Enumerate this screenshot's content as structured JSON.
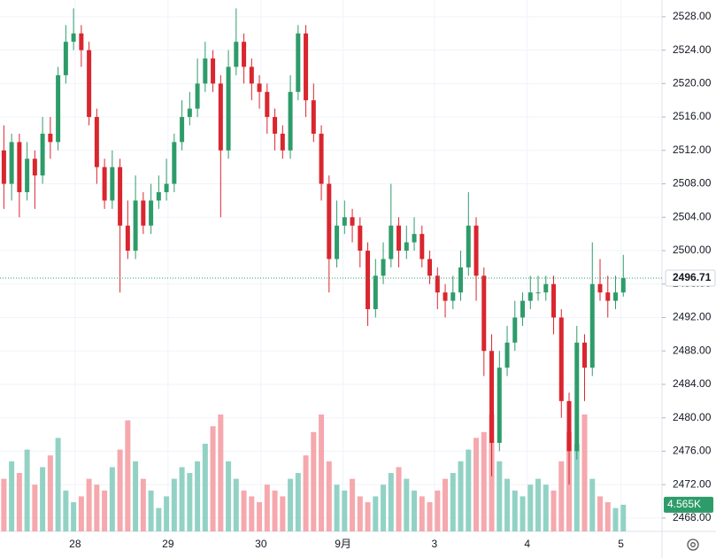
{
  "chart_data": {
    "type": "candlestick",
    "open": [
      2512,
      2508,
      2513,
      2507,
      2511,
      2509,
      2514,
      2513,
      2521,
      2525,
      2526,
      2524,
      2516,
      2510,
      2506,
      2510,
      2503,
      2500,
      2506,
      2503,
      2506,
      2507,
      2508,
      2513,
      2516,
      2517,
      2520,
      2523,
      2520,
      2512,
      2522,
      2525,
      2522,
      2520,
      2519,
      2516,
      2514,
      2512,
      2519,
      2526,
      2518,
      2514,
      2508,
      2499,
      2503,
      2504,
      2503,
      2500,
      2493,
      2497,
      2499,
      2503,
      2500,
      2501,
      2502,
      2499,
      2497,
      2495,
      2494,
      2495,
      2498,
      2503,
      2497,
      2488,
      2477,
      2486,
      2489,
      2492,
      2494,
      2495,
      2495,
      2496,
      2492,
      2482,
      2476,
      2489,
      2486,
      2496,
      2495,
      2494,
      2495
    ],
    "high": [
      2515,
      2514,
      2514,
      2513,
      2512,
      2516,
      2516,
      2522,
      2527,
      2529,
      2527,
      2525,
      2517,
      2511,
      2512,
      2511,
      2506,
      2509,
      2507,
      2508,
      2509,
      2511,
      2514,
      2518,
      2519,
      2523,
      2525,
      2524,
      2521,
      2524,
      2529,
      2526,
      2523,
      2521,
      2520,
      2517,
      2515,
      2521,
      2527,
      2527,
      2520,
      2515,
      2509,
      2506,
      2506,
      2505,
      2504,
      2501,
      2499,
      2501,
      2508,
      2504,
      2503,
      2504,
      2503,
      2500,
      2498,
      2496,
      2497,
      2500,
      2507,
      2504,
      2498,
      2490,
      2488,
      2491,
      2494,
      2495,
      2497,
      2497,
      2497,
      2497,
      2493,
      2483,
      2491,
      2490,
      2501,
      2499,
      2497,
      2497,
      2499.5
    ],
    "low": [
      2505,
      2506,
      2504,
      2506,
      2505,
      2508,
      2511,
      2512,
      2520,
      2524,
      2522,
      2515,
      2508,
      2505,
      2505,
      2495,
      2499,
      2499,
      2502,
      2502,
      2505,
      2506,
      2507,
      2512,
      2515,
      2516,
      2519,
      2519,
      2504,
      2511,
      2521,
      2520,
      2518,
      2517,
      2514,
      2512,
      2511,
      2511,
      2518,
      2516,
      2513,
      2506,
      2495,
      2498,
      2502,
      2501,
      2498,
      2491,
      2492,
      2496,
      2498,
      2498,
      2499,
      2500,
      2498,
      2496,
      2493,
      2492,
      2493,
      2494,
      2497,
      2494,
      2485,
      2473,
      2476,
      2485,
      2488,
      2491,
      2493,
      2494,
      2494,
      2490,
      2480,
      2472,
      2475,
      2482,
      2485,
      2494,
      2492,
      2493,
      2494.5
    ],
    "close": [
      2508,
      2513,
      2507,
      2511,
      2509,
      2514,
      2513,
      2521,
      2525,
      2526,
      2524,
      2516,
      2510,
      2506,
      2510,
      2503,
      2500,
      2506,
      2503,
      2506,
      2507,
      2508,
      2513,
      2516,
      2517,
      2520,
      2523,
      2520,
      2512,
      2522,
      2525,
      2522,
      2520,
      2519,
      2516,
      2514,
      2512,
      2519,
      2526,
      2518,
      2514,
      2508,
      2499,
      2503,
      2504,
      2503,
      2500,
      2493,
      2497,
      2499,
      2503,
      2500,
      2501,
      2502,
      2499,
      2497,
      2495,
      2494,
      2495,
      2498,
      2503,
      2497,
      2488,
      2477,
      2486,
      2489,
      2492,
      2494,
      2495,
      2495,
      2496,
      2492,
      2482,
      2476,
      2489,
      2486,
      2496,
      2495,
      2494,
      2495,
      2496.71
    ],
    "volume": [
      9000,
      12000,
      10000,
      14000,
      8000,
      11000,
      13000,
      16000,
      7000,
      5000,
      6000,
      9000,
      8000,
      7000,
      11000,
      14000,
      19000,
      12000,
      9000,
      7000,
      4000,
      6000,
      9000,
      11000,
      10000,
      12000,
      15000,
      18000,
      20000,
      12000,
      9000,
      7000,
      6000,
      5000,
      8000,
      7000,
      6000,
      9000,
      10000,
      13000,
      17000,
      20000,
      12000,
      8000,
      7000,
      9000,
      6000,
      5000,
      6000,
      8000,
      10000,
      11000,
      9000,
      7000,
      6000,
      5000,
      7000,
      9000,
      10000,
      12000,
      14000,
      16000,
      17000,
      20000,
      12000,
      9000,
      7000,
      6000,
      8000,
      9000,
      8000,
      7000,
      12000,
      17000,
      15000,
      20000,
      9000,
      6000,
      5000,
      4000,
      4565
    ],
    "volume_label": "4.565K",
    "xlim": [
      -0.5,
      85
    ],
    "xticks": [
      {
        "value": 9.2,
        "label": "28"
      },
      {
        "value": 21.2,
        "label": "29"
      },
      {
        "value": 33.2,
        "label": "30"
      },
      {
        "value": 43.8,
        "label": "9月"
      },
      {
        "value": 55.6,
        "label": "3"
      },
      {
        "value": 67.6,
        "label": "4"
      },
      {
        "value": 79.7,
        "label": "5"
      }
    ],
    "ylim": [
      2466.4,
      2530.0
    ],
    "yticks": [
      {
        "value": 2468,
        "label": "2468.00"
      },
      {
        "value": 2472,
        "label": "2472.00"
      },
      {
        "value": 2476,
        "label": "2476.00"
      },
      {
        "value": 2480,
        "label": "2480.00"
      },
      {
        "value": 2484,
        "label": "2484.00"
      },
      {
        "value": 2488,
        "label": "2488.00"
      },
      {
        "value": 2492,
        "label": "2492.00"
      },
      {
        "value": 2496,
        "label": "2496.00"
      },
      {
        "value": 2500,
        "label": "2500.00"
      },
      {
        "value": 2504,
        "label": "2504.00"
      },
      {
        "value": 2508,
        "label": "2508.00"
      },
      {
        "value": 2512,
        "label": "2512.00"
      },
      {
        "value": 2516,
        "label": "2516.00"
      },
      {
        "value": 2520,
        "label": "2520.00"
      },
      {
        "value": 2524,
        "label": "2524.00"
      },
      {
        "value": 2528,
        "label": "2528.00"
      }
    ],
    "volume_lim": [
      0,
      25000
    ],
    "grid": true,
    "up_color": "#2e9c6a",
    "down_color": "#d9262f",
    "volume_up_color": "#92d2c5",
    "volume_down_color": "#f5a8ad"
  }
}
